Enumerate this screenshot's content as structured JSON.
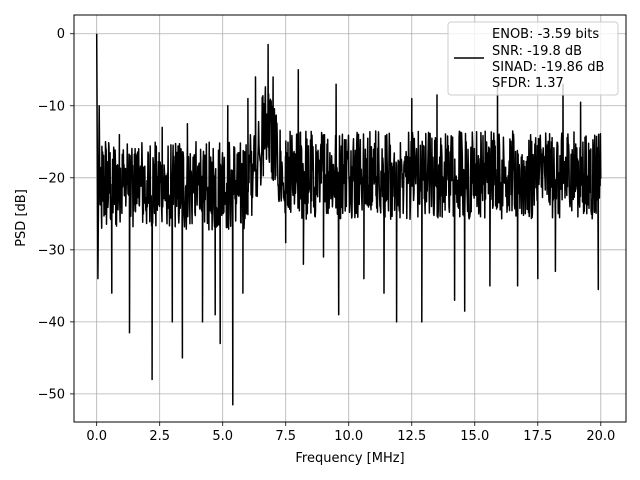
{
  "chart_data": {
    "type": "line",
    "title": "",
    "xlabel": "Frequency [MHz]",
    "ylabel": "PSD [dB]",
    "xlim": [
      -0.9,
      21.0
    ],
    "ylim": [
      -53.9,
      2.6
    ],
    "x_ticks": [
      0.0,
      2.5,
      5.0,
      7.5,
      10.0,
      12.5,
      15.0,
      17.5,
      20.0
    ],
    "x_tick_labels": [
      "0.0",
      "2.5",
      "5.0",
      "7.5",
      "10.0",
      "12.5",
      "15.0",
      "17.5",
      "20.0"
    ],
    "y_ticks": [
      0,
      -10,
      -20,
      -30,
      -40,
      -50
    ],
    "y_tick_labels": [
      "0",
      "−10",
      "−20",
      "−30",
      "−40",
      "−50"
    ],
    "grid": true,
    "legend_placement": "top-right",
    "line_color": "#000000",
    "series": [
      {
        "legend_lines": [
          "ENOB: -3.59 bits",
          "SNR: -19.8 dB",
          "SINAD: -19.86 dB",
          "SFDR: 1.37"
        ],
        "peak_points": [
          [
            0.0,
            0.0
          ],
          [
            0.05,
            -34.0
          ],
          [
            0.1,
            -10.0
          ],
          [
            0.2,
            -27.0
          ],
          [
            0.35,
            -15.0
          ],
          [
            0.6,
            -36.0
          ],
          [
            0.9,
            -14.0
          ],
          [
            1.3,
            -41.5
          ],
          [
            1.6,
            -17.0
          ],
          [
            2.2,
            -48.0
          ],
          [
            2.6,
            -13.0
          ],
          [
            3.0,
            -40.0
          ],
          [
            3.4,
            -45.0
          ],
          [
            3.6,
            -12.5
          ],
          [
            4.2,
            -40.0
          ],
          [
            4.7,
            -39.0
          ],
          [
            4.9,
            -43.0
          ],
          [
            5.2,
            -10.0
          ],
          [
            5.4,
            -51.5
          ],
          [
            5.8,
            -36.0
          ],
          [
            6.0,
            -9.0
          ],
          [
            6.3,
            -6.0
          ],
          [
            6.8,
            -1.5
          ],
          [
            7.0,
            -6.0
          ],
          [
            7.5,
            -29.0
          ],
          [
            8.0,
            -5.0
          ],
          [
            8.2,
            -32.0
          ],
          [
            9.0,
            -31.0
          ],
          [
            9.5,
            -7.0
          ],
          [
            9.6,
            -39.0
          ],
          [
            10.6,
            -34.0
          ],
          [
            11.4,
            -36.0
          ],
          [
            11.9,
            -40.0
          ],
          [
            12.5,
            -9.0
          ],
          [
            12.9,
            -40.0
          ],
          [
            13.5,
            -8.5
          ],
          [
            14.2,
            -37.0
          ],
          [
            14.6,
            -38.5
          ],
          [
            15.6,
            -35.0
          ],
          [
            15.9,
            -7.0
          ],
          [
            16.7,
            -35.0
          ],
          [
            17.5,
            -34.0
          ],
          [
            18.2,
            -33.0
          ],
          [
            18.5,
            -7.0
          ],
          [
            19.2,
            -9.5
          ],
          [
            19.9,
            -35.5
          ],
          [
            20.0,
            -20.0
          ]
        ]
      }
    ]
  }
}
